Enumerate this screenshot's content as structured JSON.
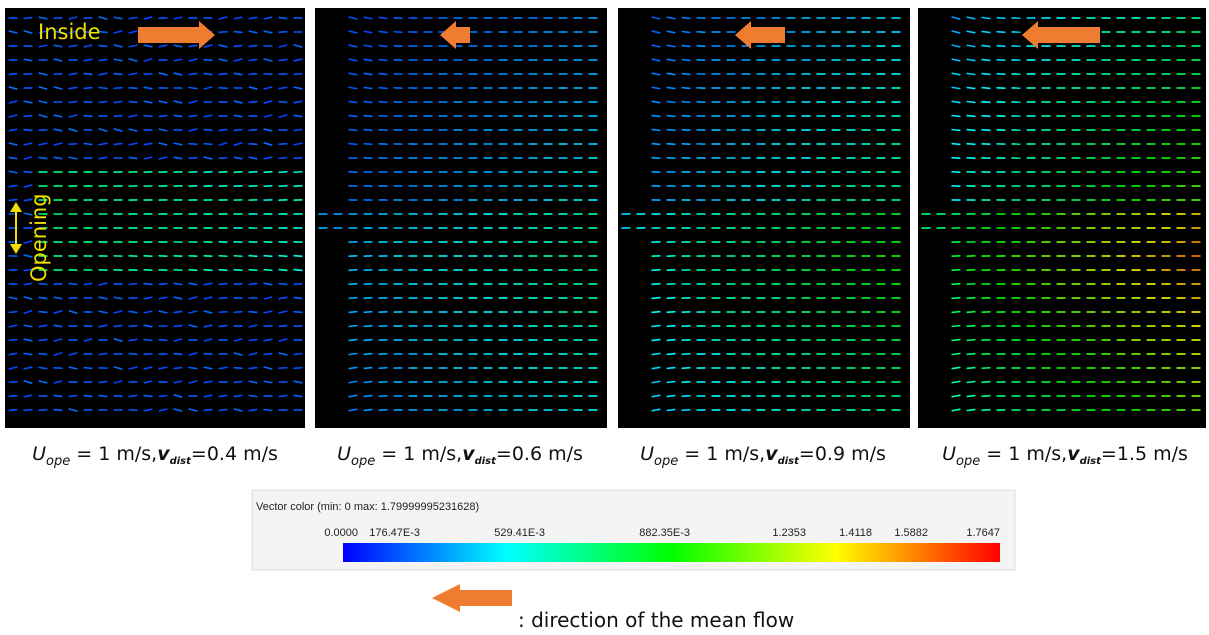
{
  "labels": {
    "inside": "Inside",
    "opening": "Opening"
  },
  "panels": [
    {
      "caption": {
        "u": "U",
        "u_sub": "ope",
        "mid": " = 1 m/s,",
        "v": "v",
        "v_sub": "dist",
        "rest": "=0.4 m/s"
      }
    },
    {
      "caption": {
        "u": "U",
        "u_sub": "ope",
        "mid": " = 1 m/s,",
        "v": "v",
        "v_sub": "dist",
        "rest": "=0.6 m/s"
      }
    },
    {
      "caption": {
        "u": "U",
        "u_sub": "ope",
        "mid": " = 1 m/s,",
        "v": "v",
        "v_sub": "dist",
        "rest": "=0.9 m/s"
      }
    },
    {
      "caption": {
        "u": "U",
        "u_sub": "ope",
        "mid": " = 1 m/s,",
        "v": "v",
        "v_sub": "dist",
        "rest": "=1.5 m/s"
      }
    }
  ],
  "colorbar": {
    "title": "Vector color (min: 0 max: 1.79999995231628)",
    "ticks": [
      "0.0000",
      "176.47E-3",
      "529.41E-3",
      "882.35E-3",
      "1.2353",
      "1.4118",
      "1.5882",
      "1.7647"
    ]
  },
  "legend": {
    "text": ": direction of the mean flow"
  }
}
